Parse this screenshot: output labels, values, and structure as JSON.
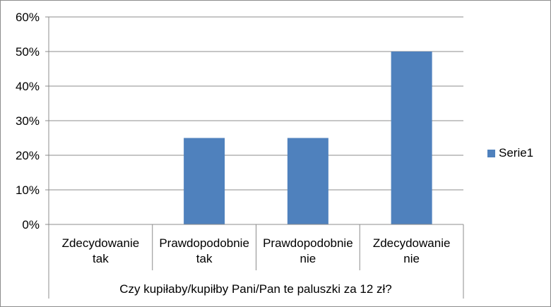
{
  "chart_data": {
    "type": "bar",
    "title": "",
    "xlabel": "Czy kupiłaby/kupiłby Pani/Pan te paluszki za 12 zł?",
    "ylabel": "",
    "categories": [
      [
        "Zdecydowanie",
        "tak"
      ],
      [
        "Prawdopodobnie",
        "tak"
      ],
      [
        "Prawdopodobnie",
        "nie"
      ],
      [
        "Zdecydowanie",
        "nie"
      ]
    ],
    "series": [
      {
        "name": "Serie1",
        "values": [
          0,
          25,
          25,
          50
        ],
        "color": "#4f81bd"
      }
    ],
    "ylim": [
      0,
      60
    ],
    "yticks": [
      "0%",
      "10%",
      "20%",
      "30%",
      "40%",
      "50%",
      "60%"
    ],
    "ytick_values": [
      0,
      10,
      20,
      30,
      40,
      50,
      60
    ],
    "grid": true,
    "legend": "right"
  }
}
